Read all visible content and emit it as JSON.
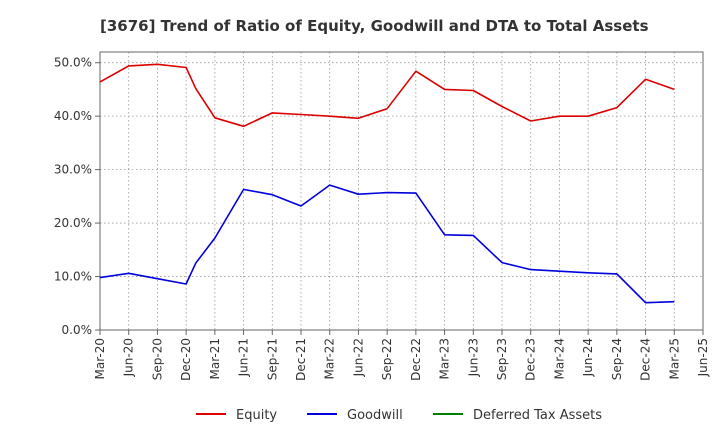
{
  "chart_data": {
    "type": "line",
    "title": "[3676]  Trend of Ratio of Equity, Goodwill and DTA to Total Assets",
    "xlabel": "",
    "ylabel": "",
    "ylim": [
      0,
      0.52
    ],
    "yticks": [
      0,
      0.1,
      0.2,
      0.3,
      0.4,
      0.5
    ],
    "ytick_labels": [
      "0.0%",
      "10.0%",
      "20.0%",
      "30.0%",
      "40.0%",
      "50.0%"
    ],
    "x_tick_labels": [
      "Mar-20",
      "Jun-20",
      "Sep-20",
      "Dec-20",
      "Mar-21",
      "Jun-21",
      "Sep-21",
      "Dec-21",
      "Mar-22",
      "Jun-22",
      "Sep-22",
      "Dec-22",
      "Mar-23",
      "Jun-23",
      "Sep-23",
      "Dec-23",
      "Mar-24",
      "Jun-24",
      "Sep-24",
      "Dec-24",
      "Mar-25",
      "Jun-25"
    ],
    "grid": true,
    "legend_position": "bottom",
    "series": [
      {
        "name": "Equity",
        "color": "#dd0000",
        "points": [
          [
            "Mar-20",
            0.464
          ],
          [
            "Jun-20",
            0.494
          ],
          [
            "Sep-20",
            0.497
          ],
          [
            "Dec-20",
            0.491
          ],
          [
            "Jan-21",
            0.452
          ],
          [
            "Mar-21",
            0.397
          ],
          [
            "Jun-21",
            0.381
          ],
          [
            "Sep-21",
            0.406
          ],
          [
            "Dec-21",
            0.403
          ],
          [
            "Mar-22",
            0.4
          ],
          [
            "Jun-22",
            0.396
          ],
          [
            "Sep-22",
            0.414
          ],
          [
            "Dec-22",
            0.484
          ],
          [
            "Mar-23",
            0.45
          ],
          [
            "Jun-23",
            0.448
          ],
          [
            "Sep-23",
            0.418
          ],
          [
            "Dec-23",
            0.391
          ],
          [
            "Mar-24",
            0.4
          ],
          [
            "Jun-24",
            0.4
          ],
          [
            "Sep-24",
            0.416
          ],
          [
            "Dec-24",
            0.469
          ],
          [
            "Mar-25",
            0.45
          ]
        ]
      },
      {
        "name": "Goodwill",
        "color": "#0000dd",
        "points": [
          [
            "Mar-20",
            0.098
          ],
          [
            "Jun-20",
            0.106
          ],
          [
            "Sep-20",
            0.096
          ],
          [
            "Dec-20",
            0.086
          ],
          [
            "Jan-21",
            0.125
          ],
          [
            "Mar-21",
            0.172
          ],
          [
            "Jun-21",
            0.263
          ],
          [
            "Sep-21",
            0.253
          ],
          [
            "Dec-21",
            0.232
          ],
          [
            "Mar-22",
            0.271
          ],
          [
            "Jun-22",
            0.254
          ],
          [
            "Sep-22",
            0.257
          ],
          [
            "Dec-22",
            0.256
          ],
          [
            "Mar-23",
            0.178
          ],
          [
            "Jun-23",
            0.177
          ],
          [
            "Sep-23",
            0.126
          ],
          [
            "Dec-23",
            0.113
          ],
          [
            "Mar-24",
            0.11
          ],
          [
            "Jun-24",
            0.107
          ],
          [
            "Sep-24",
            0.105
          ],
          [
            "Dec-24",
            0.051
          ],
          [
            "Mar-25",
            0.053
          ]
        ]
      },
      {
        "name": "Deferred Tax Assets",
        "color": "#008000",
        "points": []
      }
    ]
  }
}
